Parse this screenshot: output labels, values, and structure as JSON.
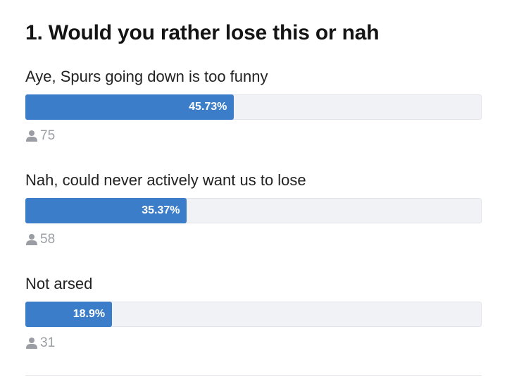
{
  "poll": {
    "title": "1. Would you rather lose this or nah",
    "options": [
      {
        "label": "Aye, Spurs going down is too funny",
        "value": 45.73,
        "value_label": "45.73%",
        "votes": 75
      },
      {
        "label": "Nah, could never actively want us to lose",
        "value": 35.37,
        "value_label": "35.37%",
        "votes": 58
      },
      {
        "label": "Not arsed",
        "value": 18.9,
        "value_label": "18.9%",
        "votes": 31
      }
    ]
  }
}
